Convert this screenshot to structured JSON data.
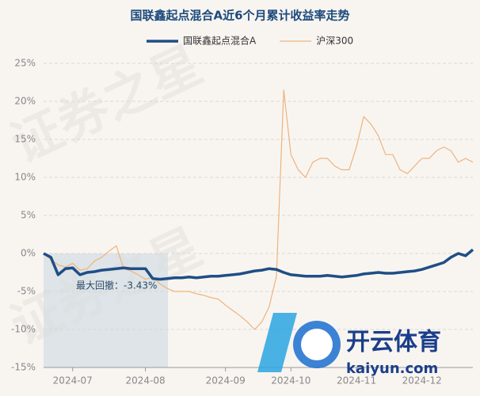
{
  "chart_data": {
    "type": "line",
    "title": "国联鑫起点混合A近6个月累计收益率走势",
    "watermark": "证券之星",
    "brand": "开云体育",
    "brand_url": "kaiyun.com",
    "annotation": "最大回撤：-3.43%",
    "categories": [
      null,
      null,
      null,
      null,
      "2024-07",
      null,
      null,
      null,
      null,
      null,
      null,
      null,
      null,
      null,
      "2024-08",
      null,
      null,
      null,
      null,
      null,
      null,
      null,
      null,
      null,
      null,
      "2024-09",
      null,
      null,
      null,
      null,
      null,
      null,
      null,
      null,
      "2024-10",
      null,
      null,
      null,
      null,
      null,
      null,
      null,
      null,
      "2024-11",
      null,
      null,
      null,
      null,
      null,
      null,
      null,
      null,
      "2024-12",
      null,
      null,
      null,
      null,
      null,
      null,
      null
    ],
    "series": [
      {
        "name": "国联鑫起点混合A",
        "color": "#1f4e85",
        "width": 3.5,
        "values": [
          0,
          -0.5,
          -2.8,
          -2,
          -1.9,
          -2.8,
          -2.5,
          -2.4,
          -2.2,
          -2.1,
          -2,
          -1.9,
          -2,
          -2,
          -2,
          -3.3,
          -3.4,
          -3.3,
          -3.2,
          -3.2,
          -3.1,
          -3.2,
          -3.1,
          -3,
          -3,
          -2.9,
          -2.8,
          -2.7,
          -2.5,
          -2.3,
          -2.2,
          -2,
          -2.1,
          -2.5,
          -2.8,
          -2.9,
          -3,
          -3,
          -3,
          -2.9,
          -3,
          -3.1,
          -3,
          -2.9,
          -2.7,
          -2.6,
          -2.5,
          -2.6,
          -2.6,
          -2.5,
          -2.4,
          -2.3,
          -2.1,
          -1.8,
          -1.5,
          -1.2,
          -0.5,
          0,
          -0.3,
          0.5
        ]
      },
      {
        "name": "沪深300",
        "color": "#f0b27a",
        "width": 1.2,
        "values": [
          0,
          -0.8,
          -1.5,
          -1.8,
          -1.3,
          -2.2,
          -2,
          -1,
          -0.5,
          0.3,
          1,
          -2,
          -2.3,
          -2.8,
          -3.4,
          -3.1,
          -4,
          -4.6,
          -5,
          -5,
          -5,
          -5.3,
          -5.5,
          -5.8,
          -6,
          -6.8,
          -7.5,
          -8.2,
          -9,
          -10,
          -9,
          -7,
          -3,
          21.5,
          13,
          11,
          10,
          12,
          12.5,
          12.5,
          11.5,
          11,
          11,
          14,
          18,
          17,
          15.5,
          13,
          13,
          11,
          10.5,
          11.5,
          12.5,
          12.5,
          13.5,
          14,
          13.5,
          12,
          12.5,
          12
        ]
      }
    ],
    "ylim": [
      -15,
      25
    ],
    "yticks": [
      {
        "value": -15,
        "label": "-15%"
      },
      {
        "value": -10,
        "label": "-10%"
      },
      {
        "value": -5,
        "label": "-5%"
      },
      {
        "value": 0,
        "label": "0%"
      },
      {
        "value": 5,
        "label": "5%"
      },
      {
        "value": 10,
        "label": "10%"
      },
      {
        "value": 15,
        "label": "15%"
      },
      {
        "value": 20,
        "label": "20%"
      },
      {
        "value": 25,
        "label": "25%"
      }
    ],
    "grid": true
  }
}
